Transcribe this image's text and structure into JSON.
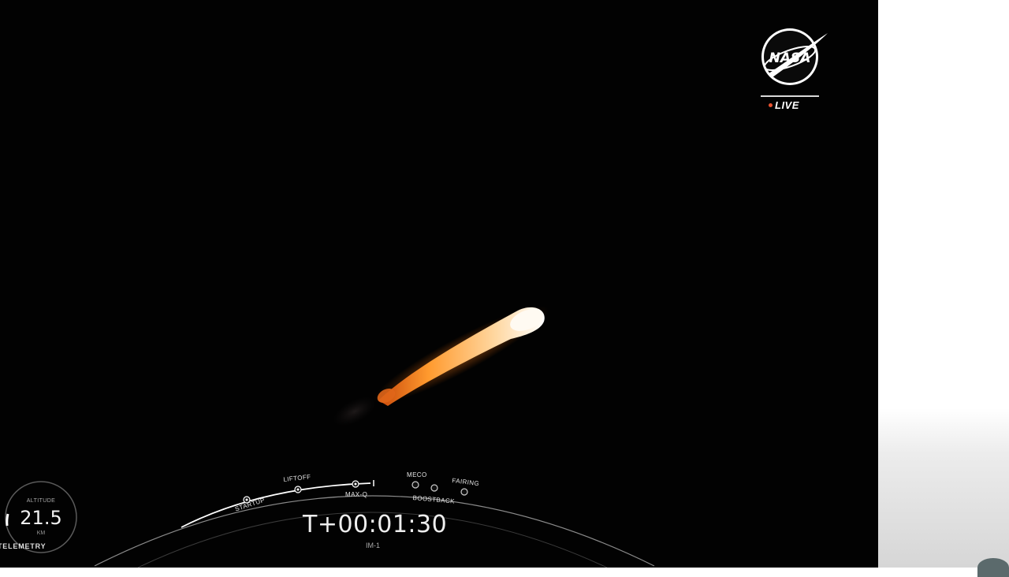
{
  "broadcast": {
    "logo": "NASA",
    "live_label": "LIVE",
    "live_dot_color": "#e8522f"
  },
  "telemetry": {
    "altitude_label": "ALTITUDE",
    "altitude_value": "21.5",
    "altitude_unit": "KM",
    "panel_label": "TELEMETRY"
  },
  "mission_clock": {
    "time": "T+00:01:30",
    "mission": "IM-1"
  },
  "timeline": {
    "events": [
      {
        "label": "STARTUP"
      },
      {
        "label": "LIFTOFF"
      },
      {
        "label": "MAX-Q"
      },
      {
        "label": "MECO"
      },
      {
        "label": "BOOSTBACK"
      },
      {
        "label": "FAIRING"
      }
    ]
  }
}
